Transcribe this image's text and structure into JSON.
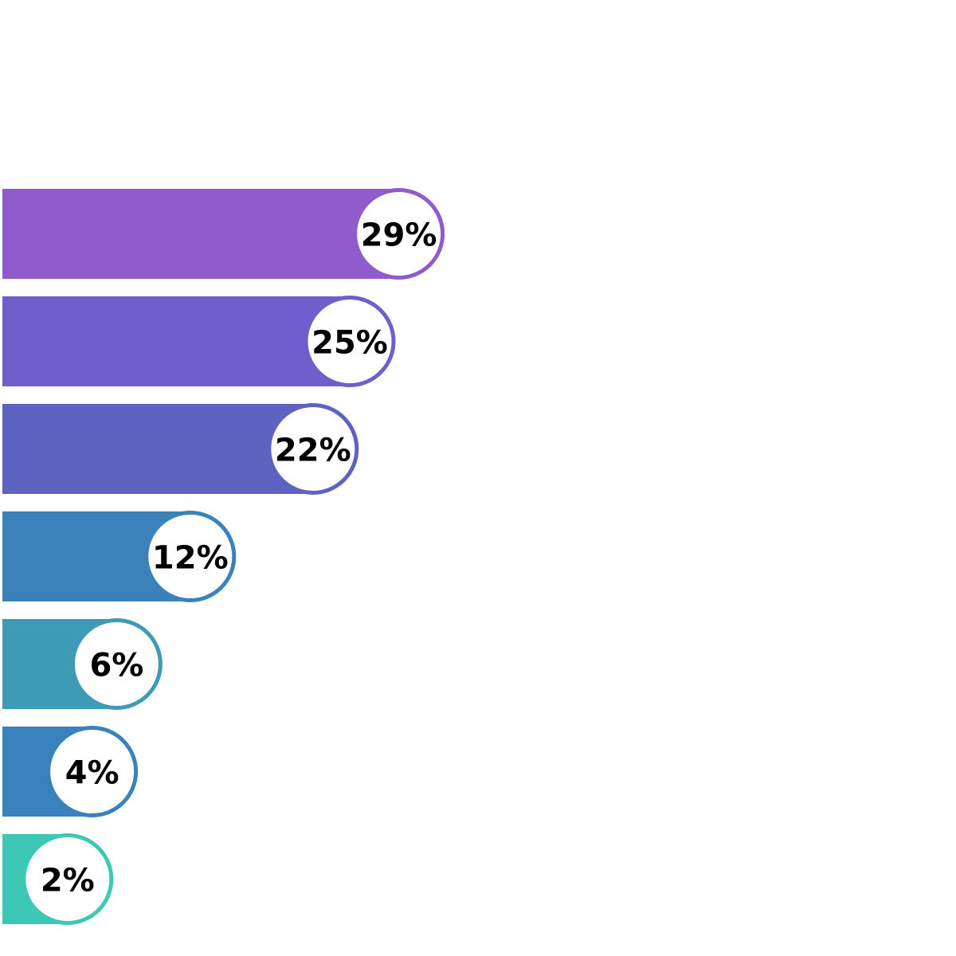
{
  "chart_data": {
    "type": "bar",
    "orientation": "horizontal",
    "values": [
      29,
      25,
      22,
      12,
      6,
      4,
      2
    ],
    "value_labels": [
      "29%",
      "25%",
      "22%",
      "12%",
      "6%",
      "4%",
      "2%"
    ],
    "colors": [
      "#8e5ccb",
      "#6f5ecb",
      "#5e62c0",
      "#3b82ba",
      "#3e9bb5",
      "#3a82bd",
      "#3cc8b5"
    ]
  }
}
